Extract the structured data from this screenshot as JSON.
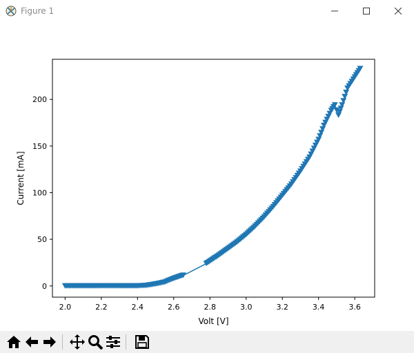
{
  "window": {
    "title": "Figure 1",
    "app_icon": "matplotlib-icon"
  },
  "toolbar": {
    "buttons": [
      {
        "icon": "home-icon",
        "name": "home-button"
      },
      {
        "icon": "back-arrow-icon",
        "name": "back-button"
      },
      {
        "icon": "forward-arrow-icon",
        "name": "forward-button"
      },
      {
        "icon": "pan-move-icon",
        "name": "pan-button"
      },
      {
        "icon": "zoom-magnifier-icon",
        "name": "zoom-button"
      },
      {
        "icon": "configure-subplots-icon",
        "name": "subplots-button"
      },
      {
        "icon": "save-disk-icon",
        "name": "save-button"
      }
    ]
  },
  "chart_data": {
    "type": "line",
    "title": "",
    "xlabel": "Volt [V]",
    "ylabel": "Current [mA]",
    "xlim": [
      1.93,
      3.71
    ],
    "ylim": [
      -12,
      243
    ],
    "xticks": [
      "2.0",
      "2.2",
      "2.4",
      "2.6",
      "2.8",
      "3.0",
      "3.2",
      "3.4",
      "3.6"
    ],
    "yticks": [
      "0",
      "50",
      "100",
      "150",
      "200"
    ],
    "marker": "triangle-down",
    "color": "#1f77b4",
    "grid": false,
    "series": [
      {
        "x": [
          2.0,
          2.1,
          2.2,
          2.3,
          2.4,
          2.45,
          2.5,
          2.55,
          2.6,
          2.63,
          2.66,
          2.78,
          2.85,
          2.9,
          2.95,
          3.0,
          3.05,
          3.1,
          3.15,
          3.2,
          3.25,
          3.3,
          3.35,
          3.4,
          3.43,
          3.47,
          3.49,
          3.51,
          3.53,
          3.56,
          3.6,
          3.63
        ],
        "y": [
          0,
          0,
          0,
          0,
          0,
          0.5,
          2,
          4,
          8,
          10,
          12,
          24,
          33,
          40,
          47,
          55,
          64,
          74,
          85,
          97,
          109,
          123,
          138,
          157,
          172,
          188,
          194,
          183,
          194,
          212,
          224,
          233
        ]
      }
    ]
  }
}
